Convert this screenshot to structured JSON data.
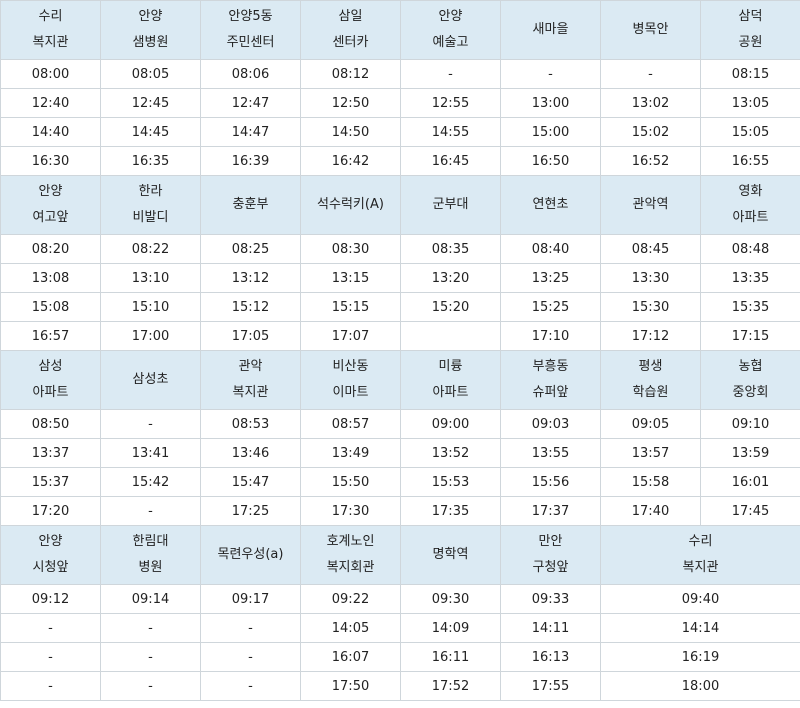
{
  "blocks": [
    {
      "stops": [
        [
          "수리",
          "복지관"
        ],
        [
          "안양",
          "샘병원"
        ],
        [
          "안양5동",
          "주민센터"
        ],
        [
          "삼일",
          "센터카"
        ],
        [
          "안양",
          "예술고"
        ],
        [
          "새마을"
        ],
        [
          "병목안"
        ],
        [
          "삼덕",
          "공원"
        ]
      ],
      "rows": [
        [
          "08:00",
          "08:05",
          "08:06",
          "08:12",
          "-",
          "-",
          "-",
          "08:15"
        ],
        [
          "12:40",
          "12:45",
          "12:47",
          "12:50",
          "12:55",
          "13:00",
          "13:02",
          "13:05"
        ],
        [
          "14:40",
          "14:45",
          "14:47",
          "14:50",
          "14:55",
          "15:00",
          "15:02",
          "15:05"
        ],
        [
          "16:30",
          "16:35",
          "16:39",
          "16:42",
          "16:45",
          "16:50",
          "16:52",
          "16:55"
        ]
      ]
    },
    {
      "stops": [
        [
          "안양",
          "여고앞"
        ],
        [
          "한라",
          "비발디"
        ],
        [
          "충훈부"
        ],
        [
          "석수럭키(A)"
        ],
        [
          "군부대"
        ],
        [
          "연현초"
        ],
        [
          "관악역"
        ],
        [
          "영화",
          "아파트"
        ]
      ],
      "rows": [
        [
          "08:20",
          "08:22",
          "08:25",
          "08:30",
          "08:35",
          "08:40",
          "08:45",
          "08:48"
        ],
        [
          "13:08",
          "13:10",
          "13:12",
          "13:15",
          "13:20",
          "13:25",
          "13:30",
          "13:35"
        ],
        [
          "15:08",
          "15:10",
          "15:12",
          "15:15",
          "15:20",
          "15:25",
          "15:30",
          "15:35"
        ],
        [
          "16:57",
          "17:00",
          "17:05",
          "17:07",
          "",
          "17:10",
          "17:12",
          "17:15"
        ]
      ]
    },
    {
      "stops": [
        [
          "삼성",
          "아파트"
        ],
        [
          "삼성초"
        ],
        [
          "관악",
          "복지관"
        ],
        [
          "비산동",
          "이마트"
        ],
        [
          "미륭",
          "아파트"
        ],
        [
          "부흥동",
          "슈퍼앞"
        ],
        [
          "평생",
          "학습원"
        ],
        [
          "농협",
          "중앙회"
        ]
      ],
      "rows": [
        [
          "08:50",
          "-",
          "08:53",
          "08:57",
          "09:00",
          "09:03",
          "09:05",
          "09:10"
        ],
        [
          "13:37",
          "13:41",
          "13:46",
          "13:49",
          "13:52",
          "13:55",
          "13:57",
          "13:59"
        ],
        [
          "15:37",
          "15:42",
          "15:47",
          "15:50",
          "15:53",
          "15:56",
          "15:58",
          "16:01"
        ],
        [
          "17:20",
          "-",
          "17:25",
          "17:30",
          "17:35",
          "17:37",
          "17:40",
          "17:45"
        ]
      ]
    },
    {
      "stops": [
        [
          "안양",
          "시청앞"
        ],
        [
          "한림대",
          "병원"
        ],
        [
          "목련우성(a)"
        ],
        [
          "호계노인",
          "복지회관"
        ],
        [
          "명학역"
        ],
        [
          "만안",
          "구청앞"
        ],
        [
          "수리",
          "복지관"
        ]
      ],
      "rows": [
        [
          "09:12",
          "09:14",
          "09:17",
          "09:22",
          "09:30",
          "09:33",
          "09:40"
        ],
        [
          "-",
          "-",
          "-",
          "14:05",
          "14:09",
          "14:11",
          "14:14"
        ],
        [
          "-",
          "-",
          "-",
          "16:07",
          "16:11",
          "16:13",
          "16:19"
        ],
        [
          "-",
          "-",
          "-",
          "17:50",
          "17:52",
          "17:55",
          "18:00"
        ]
      ]
    }
  ]
}
